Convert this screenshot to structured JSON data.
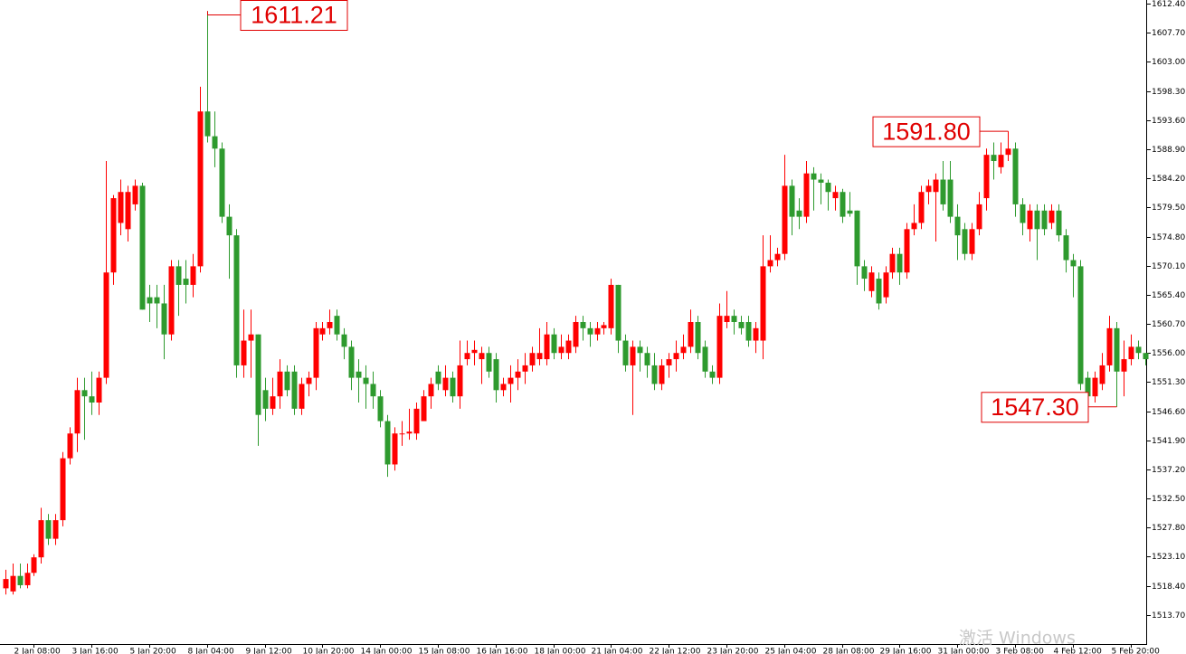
{
  "chart_data": {
    "type": "candlestick",
    "up_color": "#ff0000",
    "down_color": "#2e9a2e",
    "ylim": [
      1509.0,
      1613.0
    ],
    "yticks": [
      {
        "value": 1612.4,
        "label": "1612.40"
      },
      {
        "value": 1607.7,
        "label": "1607.70"
      },
      {
        "value": 1603.0,
        "label": "1603.00"
      },
      {
        "value": 1598.3,
        "label": "1598.30"
      },
      {
        "value": 1593.6,
        "label": "1593.60"
      },
      {
        "value": 1588.9,
        "label": "1588.90"
      },
      {
        "value": 1584.2,
        "label": "1584.20"
      },
      {
        "value": 1579.5,
        "label": "1579.50"
      },
      {
        "value": 1574.8,
        "label": "1574.80"
      },
      {
        "value": 1570.1,
        "label": "1570.10"
      },
      {
        "value": 1565.4,
        "label": "1565.40"
      },
      {
        "value": 1560.7,
        "label": "1560.70"
      },
      {
        "value": 1556.0,
        "label": "1556.00"
      },
      {
        "value": 1551.3,
        "label": "1551.30"
      },
      {
        "value": 1546.6,
        "label": "1546.60"
      },
      {
        "value": 1541.9,
        "label": "1541.90"
      },
      {
        "value": 1537.2,
        "label": "1537.20"
      },
      {
        "value": 1532.5,
        "label": "1532.50"
      },
      {
        "value": 1527.8,
        "label": "1527.80"
      },
      {
        "value": 1523.1,
        "label": "1523.10"
      },
      {
        "value": 1518.4,
        "label": "1518.40"
      },
      {
        "value": 1513.7,
        "label": "1513.70"
      }
    ],
    "categories": [
      null,
      null,
      null,
      null,
      "2 Jan 08:00",
      null,
      null,
      null,
      null,
      null,
      null,
      null,
      "3 Jan 16:00",
      null,
      null,
      null,
      null,
      null,
      null,
      null,
      "5 Jan 20:00",
      null,
      null,
      null,
      null,
      null,
      null,
      null,
      "8 Jan 04:00",
      null,
      null,
      null,
      null,
      null,
      null,
      null,
      "9 Jan 12:00",
      null,
      null,
      null,
      null,
      null,
      null,
      null,
      "10 Jan 20:00",
      null,
      null,
      null,
      null,
      null,
      null,
      null,
      "14 Jan 00:00",
      null,
      null,
      null,
      null,
      null,
      null,
      null,
      "15 Jan 08:00",
      null,
      null,
      null,
      null,
      null,
      null,
      null,
      "16 Jan 16:00",
      null,
      null,
      null,
      null,
      null,
      null,
      null,
      "18 Jan 00:00",
      null,
      null,
      null,
      null,
      null,
      null,
      null,
      "21 Jan 04:00",
      null,
      null,
      null,
      null,
      null,
      null,
      null,
      "22 Jan 12:00",
      null,
      null,
      null,
      null,
      null,
      null,
      null,
      "23 Jan 20:00",
      null,
      null,
      null,
      null,
      null,
      null,
      null,
      "25 Jan 04:00",
      null,
      null,
      null,
      null,
      null,
      null,
      null,
      "28 Jan 08:00",
      null,
      null,
      null,
      null,
      null,
      null,
      null,
      "29 Jan 16:00",
      null,
      null,
      null,
      null,
      null,
      null,
      null,
      "31 Jan 00:00",
      null,
      null,
      null,
      null,
      null,
      null,
      null,
      "3 Feb 08:00",
      null,
      null,
      null,
      null,
      null,
      null,
      null,
      "4 Feb 12:00",
      null,
      null,
      null,
      null,
      null,
      null,
      null,
      "5 Feb 20:00",
      null,
      null
    ],
    "open": [
      1518,
      1517.5,
      1520,
      1518.5,
      1520.5,
      1523,
      1529,
      1526,
      1529,
      1539,
      1543,
      1550,
      1549,
      1548,
      1552,
      1569,
      1577,
      1576,
      1580,
      1583,
      1565,
      1565,
      1564,
      1559,
      1570,
      1568,
      1567,
      1570,
      1595,
      1591,
      1589,
      1578,
      1575,
      1554,
      1558,
      1559,
      1550,
      1547,
      1549,
      1553,
      1553,
      1547,
      1551,
      1552,
      1559,
      1560,
      1562,
      1559,
      1557,
      1553,
      1552,
      1551,
      1549,
      1545,
      1538,
      1543,
      1543,
      1543,
      1545,
      1549,
      1553,
      1550,
      1552,
      1549,
      1555,
      1556,
      1555,
      1556,
      1555,
      1550,
      1551,
      1552,
      1553,
      1554,
      1555,
      1555,
      1559,
      1556,
      1556,
      1557,
      1561,
      1560,
      1559,
      1560,
      1560,
      1567,
      1558,
      1554,
      1557,
      1556,
      1554,
      1551,
      1554,
      1555,
      1556,
      1557,
      1561,
      1557,
      1553,
      1552,
      1561,
      1562,
      1561,
      1561,
      1558,
      1558,
      1570,
      1571,
      1572,
      1583,
      1579,
      1578,
      1585,
      1584,
      1583.5,
      1581,
      1582,
      1579,
      1579,
      1570,
      1566,
      1568,
      1565,
      1569,
      1572,
      1569,
      1576,
      1577,
      1582,
      1582,
      1584,
      1584,
      1578,
      1576,
      1572,
      1576,
      1581,
      1588,
      1586,
      1588,
      1589,
      1580,
      1576,
      1579,
      1579,
      1577,
      1579,
      1575,
      1571,
      1570,
      1552,
      1549,
      1551,
      1554,
      1560,
      1553,
      1555,
      1557,
      1556
    ],
    "high": [
      1521,
      1522,
      1522,
      1522,
      1523.5,
      1531,
      1530,
      1530,
      1540,
      1544,
      1552,
      1552,
      1553,
      1553,
      1587,
      1581.5,
      1584,
      1583,
      1584,
      1583.5,
      1567,
      1567,
      1567,
      1571,
      1571,
      1571,
      1572,
      1599,
      1611.21,
      1595,
      1590,
      1580,
      1576,
      1563,
      1563,
      1559,
      1552,
      1552,
      1555,
      1554,
      1554,
      1552,
      1553,
      1561,
      1561,
      1563,
      1563,
      1560,
      1558,
      1555,
      1554,
      1553,
      1550,
      1546,
      1544,
      1545,
      1547,
      1548,
      1550,
      1552,
      1554,
      1554,
      1553,
      1558,
      1558,
      1558,
      1557,
      1557,
      1556,
      1552,
      1554,
      1555,
      1556,
      1557,
      1560,
      1561,
      1560,
      1559,
      1559,
      1562,
      1562,
      1561,
      1561,
      1561,
      1568,
      1567,
      1559,
      1558,
      1558,
      1557,
      1556,
      1555,
      1556,
      1558,
      1559,
      1563,
      1562,
      1558,
      1554,
      1564,
      1566,
      1563,
      1562,
      1562,
      1561,
      1575,
      1575,
      1573,
      1588,
      1584,
      1581,
      1587,
      1586,
      1585,
      1584,
      1583,
      1582.5,
      1582,
      1579,
      1571,
      1570,
      1569,
      1570,
      1573,
      1573,
      1577,
      1580,
      1583,
      1584,
      1585,
      1587,
      1587,
      1580,
      1577,
      1577,
      1582,
      1589,
      1590,
      1590,
      1591.8,
      1590,
      1581,
      1580,
      1580,
      1580,
      1580,
      1580,
      1576,
      1572,
      1571,
      1553,
      1553,
      1556,
      1562,
      1561,
      1558,
      1559,
      1558,
      1556
    ],
    "low": [
      1517,
      1517,
      1518,
      1518,
      1520,
      1522,
      1525,
      1525,
      1528,
      1538,
      1540,
      1542,
      1546,
      1546,
      1551,
      1567,
      1575,
      1574,
      1579,
      1563,
      1561,
      1560,
      1555,
      1558,
      1562,
      1564,
      1565,
      1569,
      1590,
      1586,
      1577,
      1568,
      1552,
      1552,
      1552,
      1541,
      1545,
      1546,
      1547,
      1549,
      1546,
      1546,
      1549,
      1550,
      1558,
      1559,
      1558,
      1555,
      1550,
      1548,
      1547,
      1547,
      1544,
      1536,
      1537,
      1541,
      1542,
      1542,
      1545,
      1547,
      1550,
      1549,
      1548,
      1547,
      1554,
      1554,
      1551,
      1552,
      1548,
      1549,
      1548,
      1550,
      1551,
      1553,
      1554,
      1554,
      1555,
      1555,
      1555,
      1556,
      1558,
      1557,
      1558,
      1559,
      1559,
      1556,
      1553,
      1546,
      1553,
      1552,
      1550,
      1550,
      1552,
      1553,
      1555,
      1556,
      1555,
      1552,
      1551,
      1551,
      1560,
      1559,
      1559,
      1557,
      1556,
      1555,
      1569,
      1570,
      1571,
      1575,
      1576,
      1577,
      1579,
      1580,
      1579,
      1579,
      1577,
      1578,
      1567,
      1566,
      1565,
      1563,
      1564,
      1568,
      1567,
      1568,
      1575,
      1576,
      1580,
      1574,
      1579,
      1577,
      1571,
      1571,
      1571,
      1575,
      1579,
      1584,
      1585,
      1587,
      1578,
      1575,
      1574,
      1571,
      1575,
      1576,
      1574,
      1569,
      1565,
      1550,
      1548,
      1548,
      1550,
      1553,
      1547.3,
      1549,
      1554,
      1555,
      1554
    ],
    "close": [
      1519.5,
      1520,
      1518.5,
      1520.5,
      1523,
      1529,
      1526,
      1529,
      1539,
      1543,
      1550,
      1549,
      1548,
      1552,
      1569,
      1581,
      1582,
      1582,
      1583,
      1563,
      1564,
      1564,
      1559,
      1570,
      1567,
      1567,
      1570,
      1595,
      1591,
      1589,
      1578,
      1575,
      1554,
      1558,
      1559,
      1546,
      1547,
      1549,
      1553,
      1550,
      1547,
      1551,
      1552,
      1560,
      1560,
      1561,
      1559,
      1557,
      1552,
      1552,
      1551,
      1549,
      1545,
      1538,
      1543,
      1543,
      1543.3,
      1547,
      1549,
      1551,
      1551,
      1552,
      1549,
      1554,
      1556,
      1556.5,
      1556,
      1553,
      1550,
      1551,
      1552,
      1553,
      1554,
      1556,
      1556,
      1559,
      1556,
      1557,
      1558,
      1561,
      1560,
      1559,
      1560,
      1560.5,
      1567,
      1558,
      1554,
      1557,
      1556,
      1554,
      1551,
      1554,
      1555,
      1556,
      1557,
      1561,
      1556,
      1553,
      1552,
      1562,
      1562,
      1561,
      1560,
      1558,
      1560,
      1570,
      1571,
      1572,
      1583,
      1578,
      1578,
      1585,
      1584,
      1583.5,
      1582,
      1582,
      1578,
      1578.5,
      1570,
      1568,
      1569,
      1564,
      1569,
      1572,
      1569,
      1576,
      1577,
      1582,
      1583,
      1584,
      1580,
      1578,
      1575,
      1572,
      1576,
      1580,
      1588,
      1587,
      1588,
      1589,
      1580,
      1577,
      1579,
      1576,
      1576,
      1579,
      1575,
      1571,
      1570,
      1551,
      1549,
      1552,
      1554,
      1560,
      1553,
      1555,
      1557,
      1556,
      1555
    ],
    "annotations": [
      {
        "value": 1611.21,
        "label": "1611.21"
      },
      {
        "value": 1591.8,
        "label": "1591.80"
      },
      {
        "value": 1547.3,
        "label": "1547.30"
      }
    ],
    "watermark": "激活 Windows"
  }
}
